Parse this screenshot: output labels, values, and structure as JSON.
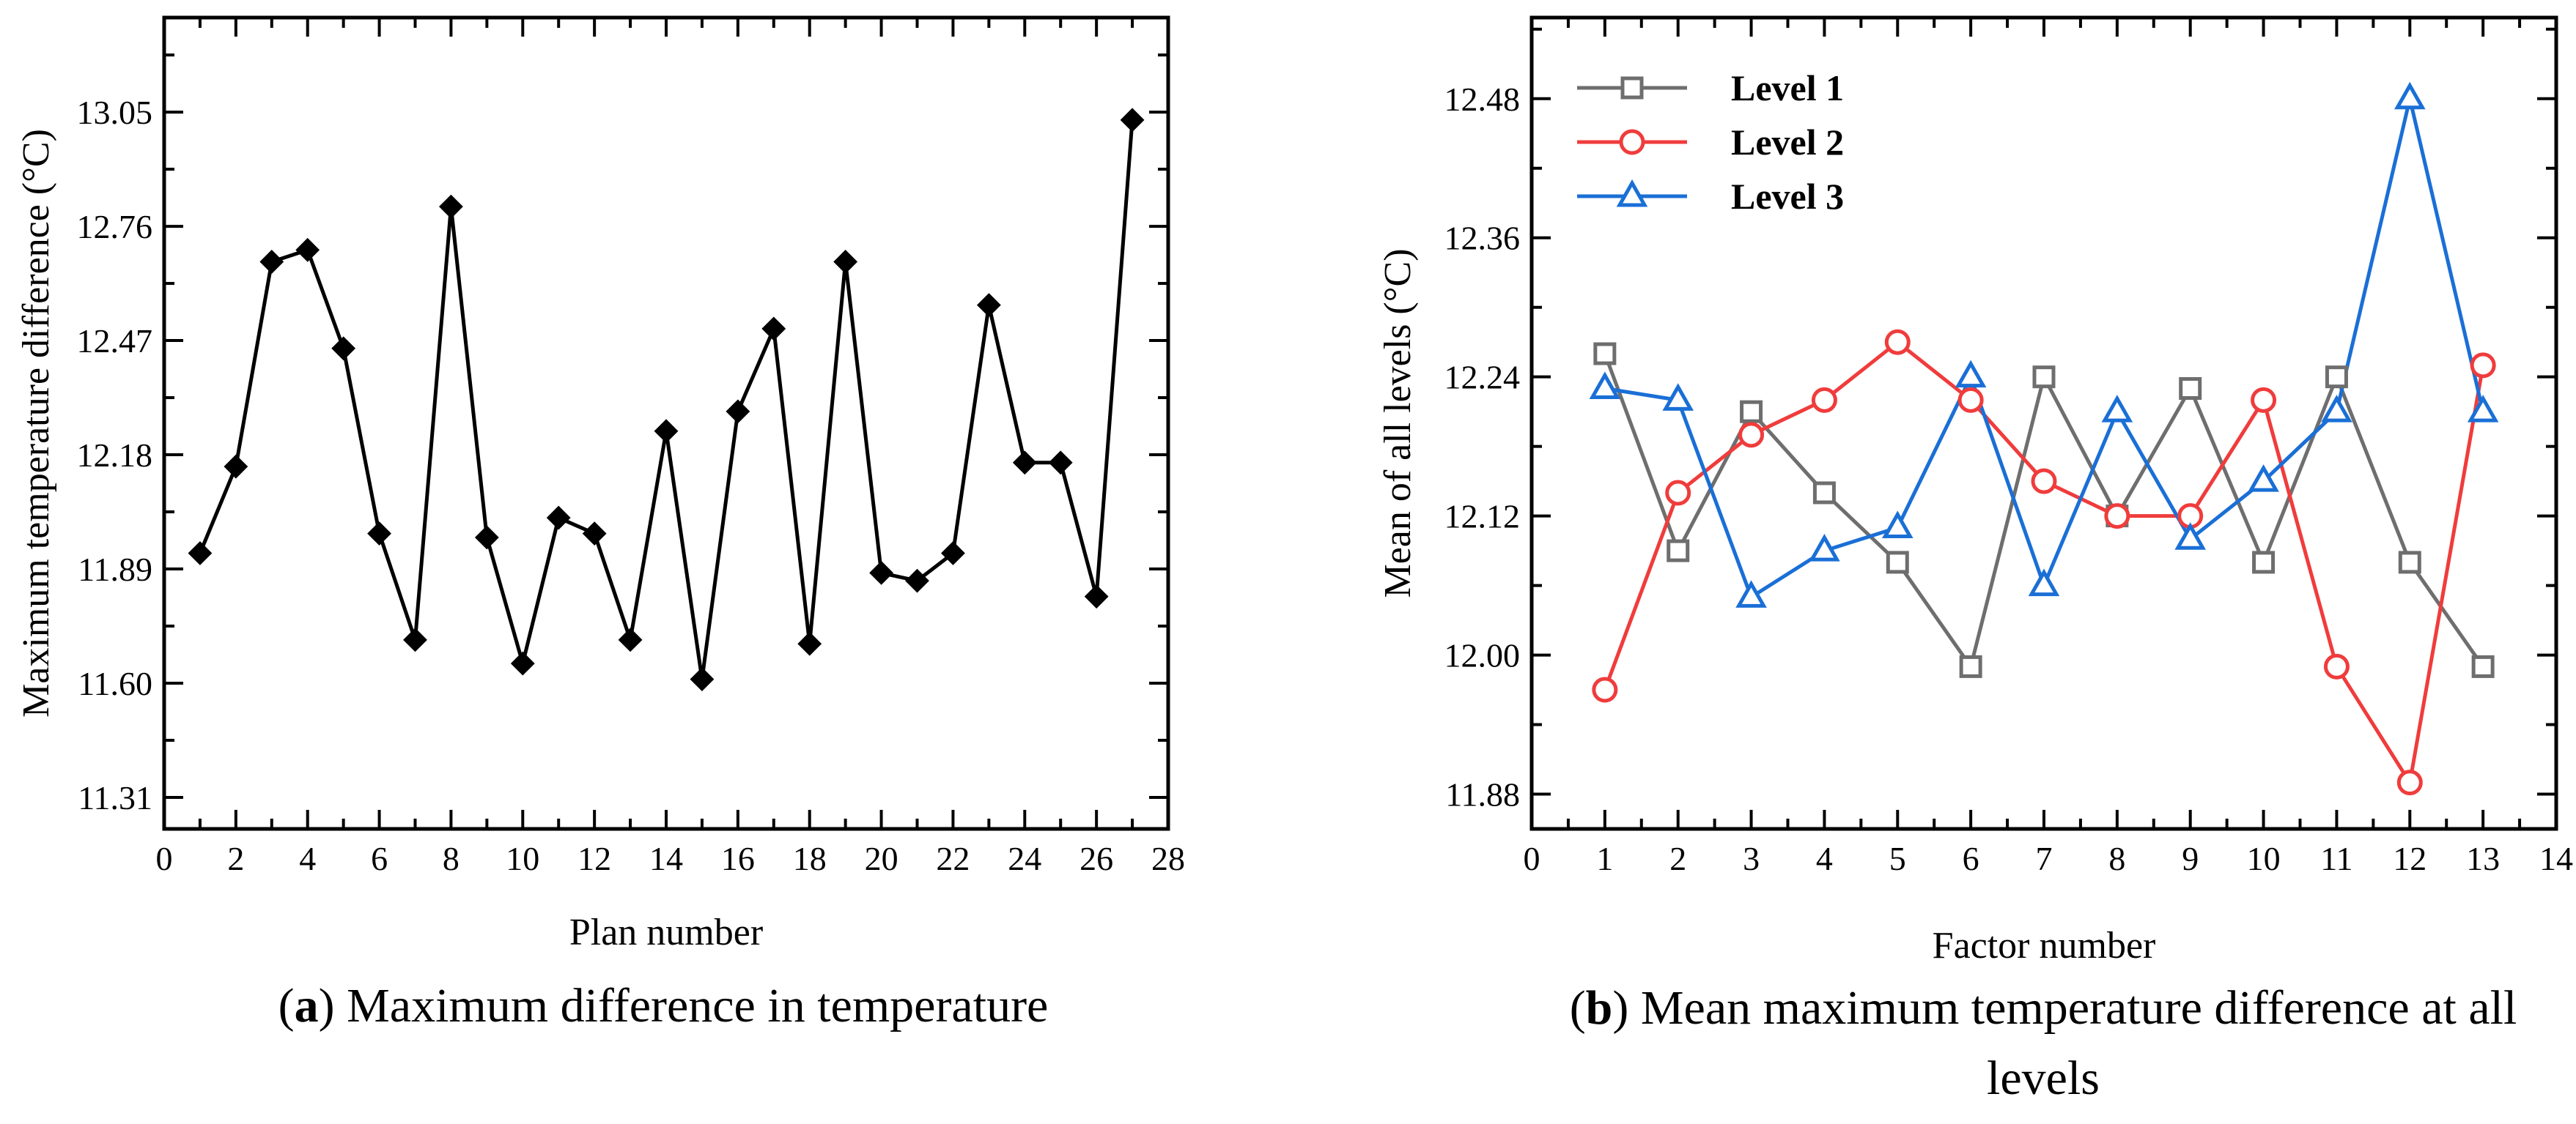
{
  "chart_data": [
    {
      "type": "line",
      "panel": "a",
      "caption_letter": "a",
      "caption_text": " Maximum difference in temperature",
      "title": "",
      "xlabel": "Plan number",
      "ylabel": "Maximum temperature difference (°C)",
      "xlim": [
        0,
        28
      ],
      "ylim": [
        11.23,
        13.29
      ],
      "xticks": [
        "0",
        "2",
        "4",
        "6",
        "8",
        "10",
        "12",
        "14",
        "16",
        "18",
        "20",
        "22",
        "24",
        "26",
        "28"
      ],
      "yticks": [
        "11.31",
        "11.60",
        "11.89",
        "12.18",
        "12.47",
        "12.76",
        "13.05"
      ],
      "grid": false,
      "series": [
        {
          "name": "Maximum temperature difference",
          "color": "#000000",
          "marker": "diamond-filled",
          "x": [
            1,
            2,
            3,
            4,
            5,
            6,
            7,
            8,
            9,
            10,
            11,
            12,
            13,
            14,
            15,
            16,
            17,
            18,
            19,
            20,
            21,
            22,
            23,
            24,
            25,
            26,
            27
          ],
          "y": [
            11.93,
            12.15,
            12.67,
            12.7,
            12.45,
            11.98,
            11.71,
            12.81,
            11.97,
            11.65,
            12.02,
            11.98,
            11.71,
            12.24,
            11.61,
            12.29,
            12.5,
            11.7,
            12.67,
            11.88,
            11.86,
            11.93,
            12.56,
            12.16,
            12.16,
            11.82,
            13.03
          ]
        }
      ]
    },
    {
      "type": "line",
      "panel": "b",
      "caption_letter": "b",
      "caption_text": " Mean maximum temperature difference at all",
      "caption_line2": "levels",
      "title": "",
      "xlabel": "Factor number",
      "ylabel": "Mean of all levels (°C)",
      "xlim": [
        0,
        14
      ],
      "ylim": [
        11.85,
        12.55
      ],
      "xticks": [
        "0",
        "1",
        "2",
        "3",
        "4",
        "5",
        "6",
        "7",
        "8",
        "9",
        "10",
        "11",
        "12",
        "13",
        "14"
      ],
      "yticks": [
        "11.88",
        "12.00",
        "12.12",
        "12.24",
        "12.36",
        "12.48"
      ],
      "grid": false,
      "legend_position": "top-left",
      "x": [
        1,
        2,
        3,
        4,
        5,
        6,
        7,
        8,
        9,
        10,
        11,
        12,
        13
      ],
      "series": [
        {
          "name": "Level 1",
          "color": "#6e6e6e",
          "marker": "square-open",
          "values": [
            12.26,
            12.09,
            12.21,
            12.14,
            12.08,
            11.99,
            12.24,
            12.12,
            12.23,
            12.08,
            12.24,
            12.08,
            11.99
          ]
        },
        {
          "name": "Level 2",
          "color": "#f03c3c",
          "marker": "circle-open",
          "values": [
            11.97,
            12.14,
            12.19,
            12.22,
            12.27,
            12.22,
            12.15,
            12.12,
            12.12,
            12.22,
            11.99,
            11.89,
            12.25
          ]
        },
        {
          "name": "Level 3",
          "color": "#1a6fd6",
          "marker": "triangle-open",
          "values": [
            12.23,
            12.22,
            12.05,
            12.09,
            12.11,
            12.24,
            12.06,
            12.21,
            12.1,
            12.15,
            12.21,
            12.48,
            12.21
          ]
        }
      ]
    }
  ]
}
